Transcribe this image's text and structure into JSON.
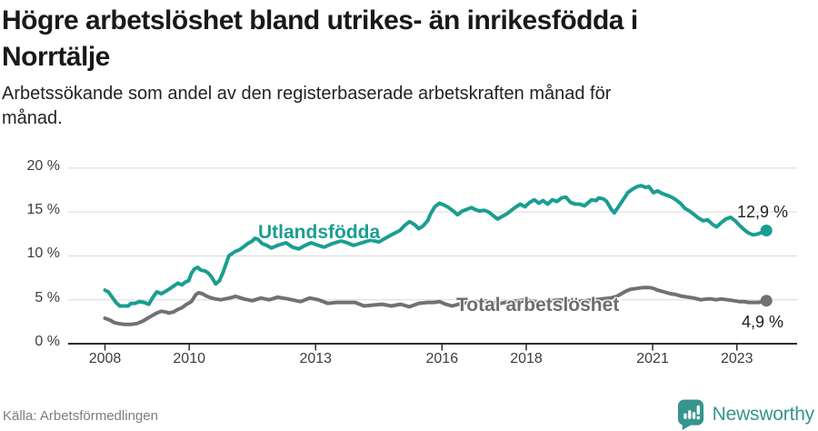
{
  "header": {
    "title": "Högre arbetslöshet bland utrikes- än inrikesfödda i\nNorrtälje",
    "subtitle": "Arbetssökande som andel av den registerbaserade arbetskraften månad för\nmånad."
  },
  "footer": {
    "source": "Källa: Arbetsförmedlingen",
    "brand": "Newsworthy",
    "brand_color": "#37948e"
  },
  "chart_data": {
    "type": "line",
    "unit": "%",
    "grid": true,
    "grid_color": "#d9d9d9",
    "axis_color": "#2e2e2e",
    "ylim": [
      0,
      20
    ],
    "xlim": [
      2008,
      2023.95
    ],
    "y_ticks": [
      {
        "value": 0,
        "label": "0 %"
      },
      {
        "value": 5,
        "label": "5 %"
      },
      {
        "value": 10,
        "label": "10 %"
      },
      {
        "value": 15,
        "label": "15 %"
      },
      {
        "value": 20,
        "label": "20 %"
      }
    ],
    "x_ticks": [
      {
        "value": 2008,
        "label": "2008"
      },
      {
        "value": 2010,
        "label": "2010"
      },
      {
        "value": 2013,
        "label": "2013"
      },
      {
        "value": 2016,
        "label": "2016"
      },
      {
        "value": 2018,
        "label": "2018"
      },
      {
        "value": 2021,
        "label": "2021"
      },
      {
        "value": 2023,
        "label": "2023"
      }
    ],
    "series": [
      {
        "name": "Utlandsfödda",
        "color": "#1a9e91",
        "end_label": "12,9 %",
        "end_value": 12.9,
        "points": [
          [
            2008.0,
            6.1
          ],
          [
            2008.08,
            5.9
          ],
          [
            2008.17,
            5.3
          ],
          [
            2008.26,
            4.7
          ],
          [
            2008.35,
            4.3
          ],
          [
            2008.45,
            4.3
          ],
          [
            2008.55,
            4.3
          ],
          [
            2008.62,
            4.6
          ],
          [
            2008.71,
            4.6
          ],
          [
            2008.82,
            4.8
          ],
          [
            2008.93,
            4.7
          ],
          [
            2009.04,
            4.5
          ],
          [
            2009.14,
            5.3
          ],
          [
            2009.23,
            5.9
          ],
          [
            2009.34,
            5.7
          ],
          [
            2009.45,
            6.0
          ],
          [
            2009.55,
            6.3
          ],
          [
            2009.64,
            6.6
          ],
          [
            2009.73,
            6.9
          ],
          [
            2009.83,
            6.7
          ],
          [
            2009.9,
            7.0
          ],
          [
            2009.99,
            7.2
          ],
          [
            2010.05,
            8.0
          ],
          [
            2010.12,
            8.5
          ],
          [
            2010.2,
            8.7
          ],
          [
            2010.27,
            8.4
          ],
          [
            2010.37,
            8.3
          ],
          [
            2010.44,
            8.1
          ],
          [
            2010.53,
            7.6
          ],
          [
            2010.63,
            6.8
          ],
          [
            2010.72,
            7.2
          ],
          [
            2010.81,
            8.2
          ],
          [
            2010.94,
            10.0
          ],
          [
            2011.09,
            10.5
          ],
          [
            2011.19,
            10.7
          ],
          [
            2011.28,
            11.0
          ],
          [
            2011.39,
            11.4
          ],
          [
            2011.5,
            11.7
          ],
          [
            2011.56,
            12.0
          ],
          [
            2011.63,
            11.9
          ],
          [
            2011.73,
            11.4
          ],
          [
            2011.84,
            11.2
          ],
          [
            2011.95,
            10.9
          ],
          [
            2012.1,
            11.2
          ],
          [
            2012.3,
            11.5
          ],
          [
            2012.45,
            11.0
          ],
          [
            2012.6,
            10.8
          ],
          [
            2012.75,
            11.2
          ],
          [
            2012.9,
            11.5
          ],
          [
            2013.0,
            11.3
          ],
          [
            2013.2,
            11.0
          ],
          [
            2013.4,
            11.4
          ],
          [
            2013.6,
            11.7
          ],
          [
            2013.75,
            11.5
          ],
          [
            2013.9,
            11.2
          ],
          [
            2014.1,
            11.5
          ],
          [
            2014.3,
            11.8
          ],
          [
            2014.5,
            11.6
          ],
          [
            2014.65,
            12.0
          ],
          [
            2014.8,
            12.4
          ],
          [
            2015.0,
            12.9
          ],
          [
            2015.12,
            13.5
          ],
          [
            2015.23,
            13.9
          ],
          [
            2015.34,
            13.6
          ],
          [
            2015.45,
            13.1
          ],
          [
            2015.55,
            13.4
          ],
          [
            2015.66,
            14.0
          ],
          [
            2015.73,
            14.8
          ],
          [
            2015.83,
            15.6
          ],
          [
            2015.94,
            16.0
          ],
          [
            2016.05,
            15.8
          ],
          [
            2016.16,
            15.5
          ],
          [
            2016.27,
            15.1
          ],
          [
            2016.37,
            14.7
          ],
          [
            2016.48,
            15.1
          ],
          [
            2016.59,
            15.3
          ],
          [
            2016.7,
            15.5
          ],
          [
            2016.78,
            15.3
          ],
          [
            2016.89,
            15.1
          ],
          [
            2017.0,
            15.2
          ],
          [
            2017.11,
            15.0
          ],
          [
            2017.21,
            14.6
          ],
          [
            2017.32,
            14.2
          ],
          [
            2017.43,
            14.5
          ],
          [
            2017.54,
            14.8
          ],
          [
            2017.65,
            15.2
          ],
          [
            2017.76,
            15.6
          ],
          [
            2017.86,
            15.9
          ],
          [
            2017.97,
            15.6
          ],
          [
            2018.08,
            16.1
          ],
          [
            2018.19,
            16.4
          ],
          [
            2018.3,
            16.0
          ],
          [
            2018.4,
            16.3
          ],
          [
            2018.51,
            15.9
          ],
          [
            2018.62,
            16.4
          ],
          [
            2018.73,
            16.2
          ],
          [
            2018.84,
            16.6
          ],
          [
            2018.94,
            16.7
          ],
          [
            2019.05,
            16.1
          ],
          [
            2019.16,
            15.9
          ],
          [
            2019.27,
            15.9
          ],
          [
            2019.38,
            15.7
          ],
          [
            2019.48,
            16.1
          ],
          [
            2019.55,
            16.4
          ],
          [
            2019.66,
            16.3
          ],
          [
            2019.72,
            16.6
          ],
          [
            2019.83,
            16.5
          ],
          [
            2019.91,
            16.2
          ],
          [
            2020.02,
            15.3
          ],
          [
            2020.09,
            14.9
          ],
          [
            2020.19,
            15.6
          ],
          [
            2020.3,
            16.4
          ],
          [
            2020.41,
            17.2
          ],
          [
            2020.52,
            17.6
          ],
          [
            2020.63,
            17.9
          ],
          [
            2020.73,
            18.0
          ],
          [
            2020.84,
            17.8
          ],
          [
            2020.91,
            17.9
          ],
          [
            2021.02,
            17.2
          ],
          [
            2021.12,
            17.4
          ],
          [
            2021.23,
            17.1
          ],
          [
            2021.34,
            16.9
          ],
          [
            2021.45,
            16.7
          ],
          [
            2021.55,
            16.4
          ],
          [
            2021.66,
            16.0
          ],
          [
            2021.77,
            15.4
          ],
          [
            2021.88,
            15.1
          ],
          [
            2021.99,
            14.7
          ],
          [
            2022.09,
            14.3
          ],
          [
            2022.2,
            14.0
          ],
          [
            2022.31,
            14.1
          ],
          [
            2022.42,
            13.6
          ],
          [
            2022.52,
            13.3
          ],
          [
            2022.63,
            13.8
          ],
          [
            2022.74,
            14.2
          ],
          [
            2022.85,
            14.4
          ],
          [
            2022.96,
            14.0
          ],
          [
            2023.06,
            13.5
          ],
          [
            2023.17,
            13.0
          ],
          [
            2023.28,
            12.6
          ],
          [
            2023.39,
            12.4
          ],
          [
            2023.5,
            12.5
          ],
          [
            2023.6,
            12.7
          ],
          [
            2023.7,
            12.9
          ]
        ]
      },
      {
        "name": "Total arbetslöshet",
        "color": "#717175",
        "end_label": "4,9 %",
        "end_value": 4.9,
        "points": [
          [
            2008.0,
            2.9
          ],
          [
            2008.11,
            2.7
          ],
          [
            2008.22,
            2.4
          ],
          [
            2008.32,
            2.3
          ],
          [
            2008.47,
            2.2
          ],
          [
            2008.6,
            2.2
          ],
          [
            2008.76,
            2.3
          ],
          [
            2008.91,
            2.6
          ],
          [
            2009.01,
            2.9
          ],
          [
            2009.12,
            3.2
          ],
          [
            2009.23,
            3.5
          ],
          [
            2009.34,
            3.7
          ],
          [
            2009.45,
            3.6
          ],
          [
            2009.51,
            3.5
          ],
          [
            2009.62,
            3.6
          ],
          [
            2009.73,
            3.9
          ],
          [
            2009.83,
            4.1
          ],
          [
            2009.94,
            4.5
          ],
          [
            2010.05,
            4.8
          ],
          [
            2010.16,
            5.6
          ],
          [
            2010.22,
            5.8
          ],
          [
            2010.31,
            5.7
          ],
          [
            2010.42,
            5.4
          ],
          [
            2010.53,
            5.2
          ],
          [
            2010.63,
            5.1
          ],
          [
            2010.75,
            5.0
          ],
          [
            2010.95,
            5.2
          ],
          [
            2011.1,
            5.4
          ],
          [
            2011.3,
            5.1
          ],
          [
            2011.5,
            4.9
          ],
          [
            2011.7,
            5.2
          ],
          [
            2011.9,
            5.0
          ],
          [
            2012.1,
            5.3
          ],
          [
            2012.35,
            5.1
          ],
          [
            2012.64,
            4.8
          ],
          [
            2012.86,
            5.2
          ],
          [
            2013.07,
            5.0
          ],
          [
            2013.29,
            4.6
          ],
          [
            2013.5,
            4.7
          ],
          [
            2013.72,
            4.7
          ],
          [
            2013.94,
            4.7
          ],
          [
            2014.15,
            4.3
          ],
          [
            2014.37,
            4.4
          ],
          [
            2014.58,
            4.5
          ],
          [
            2014.8,
            4.3
          ],
          [
            2015.01,
            4.5
          ],
          [
            2015.23,
            4.2
          ],
          [
            2015.45,
            4.6
          ],
          [
            2015.66,
            4.7
          ],
          [
            2015.81,
            4.7
          ],
          [
            2015.94,
            4.8
          ],
          [
            2016.09,
            4.5
          ],
          [
            2016.24,
            4.3
          ],
          [
            2016.4,
            4.5
          ],
          [
            2016.6,
            4.7
          ],
          [
            2016.8,
            4.8
          ],
          [
            2017.0,
            4.9
          ],
          [
            2017.2,
            4.7
          ],
          [
            2017.4,
            4.6
          ],
          [
            2017.6,
            4.8
          ],
          [
            2017.8,
            4.9
          ],
          [
            2018.0,
            5.0
          ],
          [
            2018.2,
            4.8
          ],
          [
            2018.4,
            4.7
          ],
          [
            2018.6,
            4.9
          ],
          [
            2018.8,
            5.0
          ],
          [
            2019.0,
            4.9
          ],
          [
            2019.2,
            4.8
          ],
          [
            2019.4,
            4.9
          ],
          [
            2019.6,
            5.0
          ],
          [
            2019.8,
            5.1
          ],
          [
            2020.0,
            5.2
          ],
          [
            2020.15,
            5.4
          ],
          [
            2020.26,
            5.7
          ],
          [
            2020.37,
            6.0
          ],
          [
            2020.48,
            6.2
          ],
          [
            2020.63,
            6.3
          ],
          [
            2020.78,
            6.4
          ],
          [
            2020.91,
            6.4
          ],
          [
            2021.02,
            6.3
          ],
          [
            2021.12,
            6.1
          ],
          [
            2021.27,
            5.9
          ],
          [
            2021.42,
            5.7
          ],
          [
            2021.55,
            5.6
          ],
          [
            2021.7,
            5.4
          ],
          [
            2021.85,
            5.3
          ],
          [
            2021.98,
            5.2
          ],
          [
            2022.14,
            5.0
          ],
          [
            2022.29,
            5.1
          ],
          [
            2022.4,
            5.1
          ],
          [
            2022.5,
            5.0
          ],
          [
            2022.63,
            5.1
          ],
          [
            2022.78,
            5.0
          ],
          [
            2022.93,
            4.9
          ],
          [
            2023.06,
            4.8
          ],
          [
            2023.17,
            4.8
          ],
          [
            2023.28,
            4.7
          ],
          [
            2023.39,
            4.7
          ],
          [
            2023.52,
            4.7
          ],
          [
            2023.7,
            4.9
          ]
        ]
      }
    ]
  }
}
